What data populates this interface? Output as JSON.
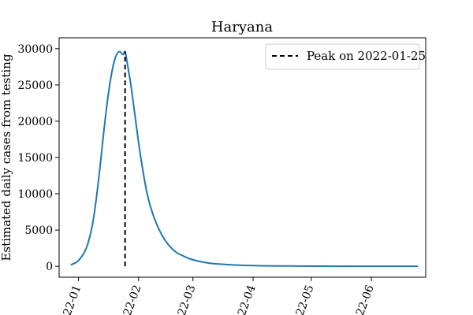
{
  "chart_data": {
    "type": "line",
    "title": "Haryana",
    "xlabel": "",
    "ylabel": "Estimated daily cases from testing",
    "x_axis_type": "date",
    "xlim": [
      "2021-12-22",
      "2022-06-29"
    ],
    "ylim": [
      -1500,
      31500
    ],
    "x_tick_labels": [
      "2022-01",
      "2022-02",
      "2022-03",
      "2022-04",
      "2022-05",
      "2022-06"
    ],
    "x_tick_dates": [
      "2022-01-01",
      "2022-02-01",
      "2022-03-01",
      "2022-04-01",
      "2022-05-01",
      "2022-06-01"
    ],
    "y_ticks": [
      0,
      5000,
      10000,
      15000,
      20000,
      25000,
      30000
    ],
    "grid": false,
    "legend_position": "top-right",
    "series": [
      {
        "x": [
          "2021-12-28",
          "2022-01-01",
          "2022-01-05",
          "2022-01-08",
          "2022-01-10",
          "2022-01-12",
          "2022-01-14",
          "2022-01-16",
          "2022-01-18",
          "2022-01-20",
          "2022-01-22",
          "2022-01-24",
          "2022-01-25",
          "2022-01-26",
          "2022-01-28",
          "2022-01-30",
          "2022-02-01",
          "2022-02-03",
          "2022-02-05",
          "2022-02-07",
          "2022-02-10",
          "2022-02-13",
          "2022-02-16",
          "2022-02-20",
          "2022-02-25",
          "2022-03-01",
          "2022-03-08",
          "2022-03-15",
          "2022-03-25",
          "2022-04-05",
          "2022-04-20",
          "2022-05-05",
          "2022-05-25",
          "2022-06-15",
          "2022-06-25"
        ],
        "values": [
          200,
          800,
          2500,
          5500,
          9000,
          13500,
          18500,
          23000,
          26500,
          28800,
          29600,
          29200,
          29600,
          28200,
          25000,
          21000,
          17000,
          13500,
          10500,
          8300,
          6000,
          4300,
          3100,
          2000,
          1300,
          900,
          500,
          300,
          150,
          80,
          40,
          20,
          10,
          5,
          2
        ],
        "color": "#1f77b4"
      }
    ],
    "peak_line": {
      "label": "Peak on 2022-01-25",
      "x": "2022-01-25",
      "y_top": 29600,
      "color": "#000000"
    }
  }
}
